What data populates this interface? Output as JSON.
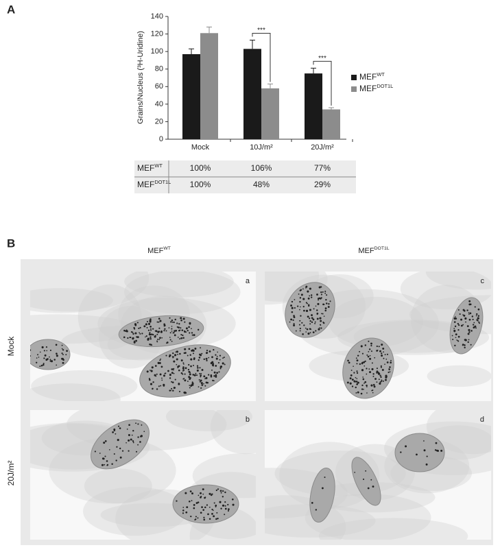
{
  "chart_data": {
    "type": "bar",
    "y_label": "Grains/Nucleus (³H-Uridine)",
    "categories": [
      "Mock",
      "10J/m²",
      "20J/m²"
    ],
    "series": [
      {
        "name": "MEF",
        "name_sup": "WT",
        "color": "#1a1a1a",
        "values": [
          97,
          103,
          75
        ],
        "errors": [
          6,
          10,
          6
        ]
      },
      {
        "name": "MEF",
        "name_sup": "DOT1L",
        "color": "#8c8c8c",
        "values": [
          121,
          58,
          34
        ],
        "errors": [
          7,
          5,
          2
        ]
      }
    ],
    "ylim": [
      0,
      140
    ],
    "yticks": [
      0,
      20,
      40,
      60,
      80,
      100,
      120,
      140
    ],
    "annotations": [
      "***",
      "***"
    ]
  },
  "panel_a": {
    "label": "A"
  },
  "table": {
    "rows": [
      {
        "label": "MEF",
        "label_sup": "WT",
        "cells": [
          "100%",
          "106%",
          "77%"
        ]
      },
      {
        "label": "MEF",
        "label_sup": "DOT1L",
        "cells": [
          "100%",
          "48%",
          "29%"
        ]
      }
    ]
  },
  "panel_b": {
    "label": "B",
    "columns": [
      {
        "text": "MEF",
        "sup": "WT"
      },
      {
        "text": "MEF",
        "sup": "DOT1L"
      }
    ],
    "rows": [
      "Mock",
      "20J/m²"
    ],
    "letters": [
      "a",
      "c",
      "b",
      "d"
    ]
  }
}
